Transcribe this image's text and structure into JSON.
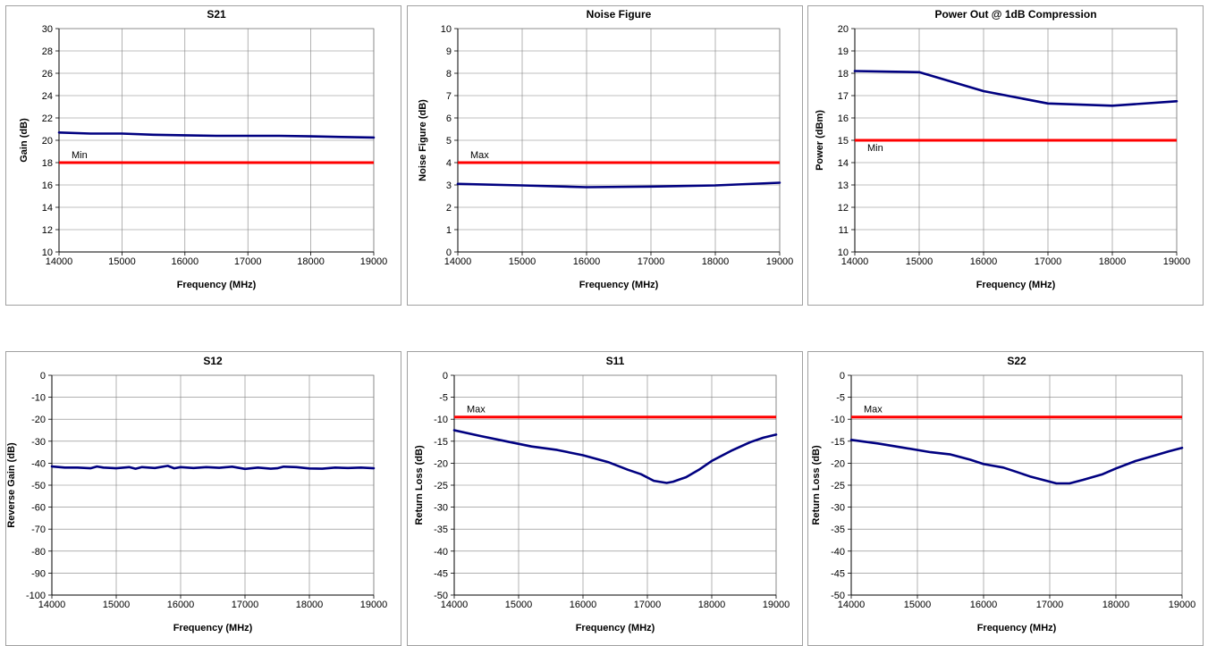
{
  "colors": {
    "series": "#000080",
    "limit": "#ff0000",
    "grid": "#808080",
    "border": "#a0a0a0"
  },
  "chart_data": [
    {
      "type": "line",
      "title": "S21",
      "xlabel": "Frequency (MHz)",
      "ylabel": "Gain (dB)",
      "xlim": [
        14000,
        19000
      ],
      "ylim": [
        10,
        30
      ],
      "xticks": [
        "14000",
        "15000",
        "16000",
        "17000",
        "18000",
        "19000"
      ],
      "yticks": [
        "10",
        "12",
        "14",
        "16",
        "18",
        "20",
        "22",
        "24",
        "26",
        "28",
        "30"
      ],
      "series": [
        {
          "x": [
            14000,
            14500,
            15000,
            15500,
            16000,
            16500,
            17000,
            17500,
            18000,
            18500,
            19000
          ],
          "y": [
            20.7,
            20.6,
            20.6,
            20.5,
            20.45,
            20.4,
            20.4,
            20.4,
            20.35,
            20.3,
            20.25
          ]
        }
      ],
      "limit": {
        "value": 18,
        "label": "Min"
      }
    },
    {
      "type": "line",
      "title": "Noise Figure",
      "xlabel": "Frequency (MHz)",
      "ylabel": "Noise Figure (dB)",
      "xlim": [
        14000,
        19000
      ],
      "ylim": [
        0,
        10
      ],
      "xticks": [
        "14000",
        "15000",
        "16000",
        "17000",
        "18000",
        "19000"
      ],
      "yticks": [
        "0",
        "1",
        "2",
        "3",
        "4",
        "5",
        "6",
        "7",
        "8",
        "9",
        "10"
      ],
      "series": [
        {
          "x": [
            14000,
            15000,
            16000,
            17000,
            18000,
            19000
          ],
          "y": [
            3.05,
            2.98,
            2.9,
            2.93,
            2.98,
            3.1
          ]
        }
      ],
      "limit": {
        "value": 4,
        "label": "Max"
      }
    },
    {
      "type": "line",
      "title": "Power Out @ 1dB Compression",
      "xlabel": "Frequency (MHz)",
      "ylabel": "Power (dBm)",
      "xlim": [
        14000,
        19000
      ],
      "ylim": [
        10,
        20
      ],
      "xticks": [
        "14000",
        "15000",
        "16000",
        "17000",
        "18000",
        "19000"
      ],
      "yticks": [
        "10",
        "11",
        "12",
        "13",
        "14",
        "15",
        "16",
        "17",
        "18",
        "19",
        "20"
      ],
      "series": [
        {
          "x": [
            14000,
            15000,
            16000,
            17000,
            18000,
            19000
          ],
          "y": [
            18.1,
            18.05,
            17.2,
            16.65,
            16.55,
            16.75
          ]
        }
      ],
      "limit": {
        "value": 15,
        "label": "Min"
      }
    },
    {
      "type": "line",
      "title": "S12",
      "xlabel": "Frequency (MHz)",
      "ylabel": "Reverse Gain (dB)",
      "xlim": [
        14000,
        19000
      ],
      "ylim": [
        -100,
        0
      ],
      "xticks": [
        "14000",
        "15000",
        "16000",
        "17000",
        "18000",
        "19000"
      ],
      "yticks": [
        "-100",
        "-90",
        "-80",
        "-70",
        "-60",
        "-50",
        "-40",
        "-30",
        "-20",
        "-10",
        "0"
      ],
      "series": [
        {
          "x": [
            14000,
            14200,
            14400,
            14600,
            14700,
            14800,
            15000,
            15200,
            15300,
            15400,
            15600,
            15800,
            15900,
            16000,
            16200,
            16400,
            16600,
            16800,
            17000,
            17200,
            17400,
            17500,
            17600,
            17800,
            18000,
            18200,
            18400,
            18600,
            18800,
            19000
          ],
          "y": [
            -41.5,
            -42,
            -42,
            -42.3,
            -41.5,
            -42,
            -42.3,
            -41.8,
            -42.5,
            -41.8,
            -42.2,
            -41.2,
            -42.3,
            -41.8,
            -42.2,
            -41.8,
            -42.1,
            -41.6,
            -42.6,
            -42,
            -42.5,
            -42.3,
            -41.6,
            -41.8,
            -42.4,
            -42.5,
            -42,
            -42.2,
            -42,
            -42.3
          ]
        }
      ],
      "limit": null
    },
    {
      "type": "line",
      "title": "S11",
      "xlabel": "Frequency (MHz)",
      "ylabel": "Return Loss (dB)",
      "xlim": [
        14000,
        19000
      ],
      "ylim": [
        -50,
        0
      ],
      "xticks": [
        "14000",
        "15000",
        "16000",
        "17000",
        "18000",
        "19000"
      ],
      "yticks": [
        "-50",
        "-45",
        "-40",
        "-35",
        "-30",
        "-25",
        "-20",
        "-15",
        "-10",
        "-5",
        "0"
      ],
      "series": [
        {
          "x": [
            14000,
            14400,
            14800,
            15200,
            15600,
            16000,
            16400,
            16700,
            16900,
            17100,
            17300,
            17400,
            17600,
            17800,
            18000,
            18300,
            18600,
            18800,
            19000
          ],
          "y": [
            -12.5,
            -13.8,
            -15,
            -16.2,
            -17,
            -18.2,
            -19.8,
            -21.5,
            -22.5,
            -24,
            -24.5,
            -24.2,
            -23.2,
            -21.5,
            -19.5,
            -17.2,
            -15.2,
            -14.2,
            -13.5
          ]
        }
      ],
      "limit": {
        "value": -9.5,
        "label": "Max"
      }
    },
    {
      "type": "line",
      "title": "S22",
      "xlabel": "Frequency (MHz)",
      "ylabel": "Return Loss (dB)",
      "xlim": [
        14000,
        19000
      ],
      "ylim": [
        -50,
        0
      ],
      "xticks": [
        "14000",
        "15000",
        "16000",
        "17000",
        "18000",
        "19000"
      ],
      "yticks": [
        "-50",
        "-45",
        "-40",
        "-35",
        "-30",
        "-25",
        "-20",
        "-15",
        "-10",
        "-5",
        "0"
      ],
      "series": [
        {
          "x": [
            14000,
            14400,
            14800,
            15200,
            15500,
            15800,
            16000,
            16300,
            16500,
            16700,
            16900,
            17100,
            17300,
            17500,
            17800,
            18000,
            18300,
            18600,
            18800,
            19000
          ],
          "y": [
            -14.7,
            -15.5,
            -16.5,
            -17.5,
            -18,
            -19.2,
            -20.2,
            -21,
            -22,
            -23,
            -23.8,
            -24.6,
            -24.6,
            -23.8,
            -22.5,
            -21.2,
            -19.5,
            -18.2,
            -17.3,
            -16.5
          ]
        }
      ],
      "limit": {
        "value": -9.5,
        "label": "Max"
      }
    }
  ]
}
